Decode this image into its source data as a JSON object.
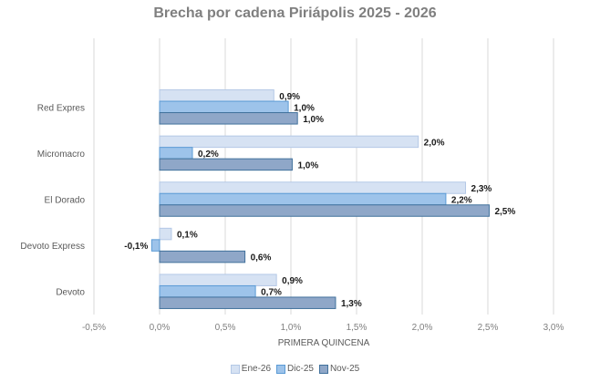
{
  "chart_data": {
    "type": "bar",
    "orientation": "horizontal",
    "title": "Brecha por cadena Piriápolis 2025 - 2026",
    "xlabel": "PRIMERA QUINCENA",
    "ylabel": "",
    "xlim": [
      -0.5,
      3.0
    ],
    "xticks": [
      -0.5,
      0,
      0.5,
      1.0,
      1.5,
      2.0,
      2.5,
      3.0
    ],
    "xtick_labels": [
      "-0,5%",
      "0,0%",
      "0,5%",
      "1,0%",
      "1,5%",
      "2,0%",
      "2,5%",
      "3,0%"
    ],
    "grid": true,
    "legend": "bottom",
    "categories": [
      "Red Expres",
      "Micromacro",
      "El Dorado",
      "Devoto Express",
      "Devoto"
    ],
    "series": [
      {
        "name": "Ene-26",
        "color": "#d6e2f3",
        "border": "#b4c8e6",
        "values": [
          0.87,
          1.97,
          2.33,
          0.09,
          0.89
        ],
        "labels": [
          "0,9%",
          "2,0%",
          "2,3%",
          "0,1%",
          "0,9%"
        ]
      },
      {
        "name": "Dic-25",
        "color": "#9dc3ea",
        "border": "#5b9bd5",
        "values": [
          0.98,
          0.25,
          2.18,
          -0.06,
          0.73
        ],
        "labels": [
          "1,0%",
          "0,2%",
          "2,2%",
          "-0,1%",
          "0,7%"
        ]
      },
      {
        "name": "Nov-25",
        "color": "#8fa7c8",
        "border": "#41719c",
        "values": [
          1.05,
          1.01,
          2.51,
          0.65,
          1.34
        ],
        "labels": [
          "1,0%",
          "1,0%",
          "2,5%",
          "0,6%",
          "1,3%"
        ]
      }
    ]
  }
}
